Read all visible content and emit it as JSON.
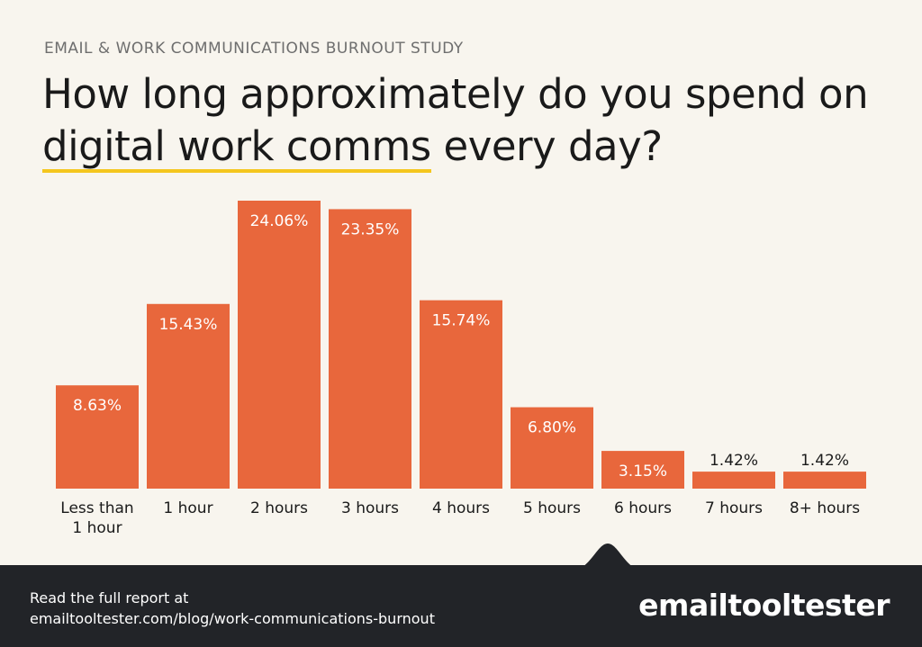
{
  "header": {
    "eyebrow": "EMAIL & WORK COMMUNICATIONS BURNOUT STUDY",
    "title_part1": "How long approximately do you spend on ",
    "title_highlight": "digital work comms",
    "title_part2": " every day?",
    "highlight_color": "#f4c61e"
  },
  "chart_data": {
    "type": "bar",
    "title": "How long approximately do you spend on digital work comms every day?",
    "categories": [
      [
        "Less than",
        "1 hour"
      ],
      [
        "1 hour"
      ],
      [
        "2 hours"
      ],
      [
        "3 hours"
      ],
      [
        "4 hours"
      ],
      [
        "5 hours"
      ],
      [
        "6 hours"
      ],
      [
        "7 hours"
      ],
      [
        "8+ hours"
      ]
    ],
    "values": [
      8.63,
      15.43,
      24.06,
      23.35,
      15.74,
      6.8,
      3.15,
      1.42,
      1.42
    ],
    "value_labels": [
      "8.63%",
      "15.43%",
      "24.06%",
      "23.35%",
      "15.74%",
      "6.80%",
      "3.15%",
      "1.42%",
      "1.42%"
    ],
    "unit": "%",
    "bar_color": "#e8673c",
    "grid": false,
    "legend": "none"
  },
  "footer": {
    "line1": "Read the full report at",
    "line2": "emailtooltester.com/blog/work-communications-burnout",
    "logo_text": "emailtooltester",
    "background": "#222428"
  }
}
